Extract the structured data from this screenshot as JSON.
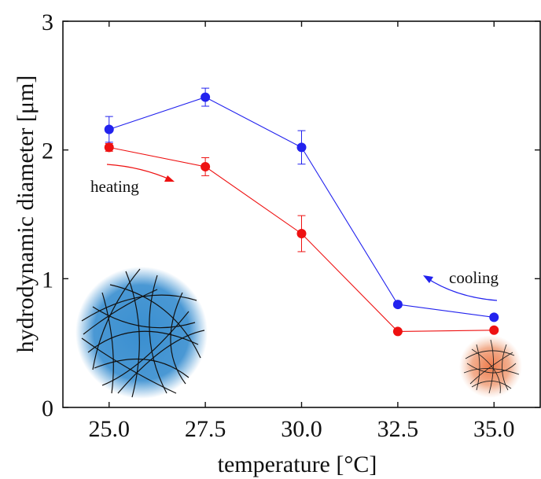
{
  "chart_data": {
    "type": "line",
    "xlabel": "temperature [°C]",
    "ylabel": "hydrodynamic diameter [μm]",
    "xlim": [
      23.8,
      36.2
    ],
    "ylim": [
      0,
      3
    ],
    "x_ticks": [
      25.0,
      27.5,
      30.0,
      32.5,
      35.0
    ],
    "x_tick_labels": [
      "25.0",
      "27.5",
      "30.0",
      "32.5",
      "35.0"
    ],
    "y_ticks": [
      0,
      1,
      2,
      3
    ],
    "y_tick_labels": [
      "0",
      "1",
      "2",
      "3"
    ],
    "grid": false,
    "series": [
      {
        "color": "#2222ee",
        "x": [
          25.0,
          27.5,
          30.0,
          32.5,
          35.0
        ],
        "y": [
          2.16,
          2.41,
          2.02,
          0.8,
          0.7
        ],
        "yerr": [
          0.1,
          0.07,
          0.13,
          0.02,
          0.02
        ]
      },
      {
        "color": "#ee1111",
        "x": [
          25.0,
          27.5,
          30.0,
          32.5,
          35.0
        ],
        "y": [
          2.02,
          1.87,
          1.35,
          0.59,
          0.6
        ],
        "yerr": [
          0.03,
          0.07,
          0.14,
          0.01,
          0.01
        ]
      }
    ],
    "annotations": [
      {
        "text": "heating",
        "arrow_color": "#ee1111"
      },
      {
        "text": "cooling",
        "arrow_color": "#2222ee"
      }
    ]
  }
}
